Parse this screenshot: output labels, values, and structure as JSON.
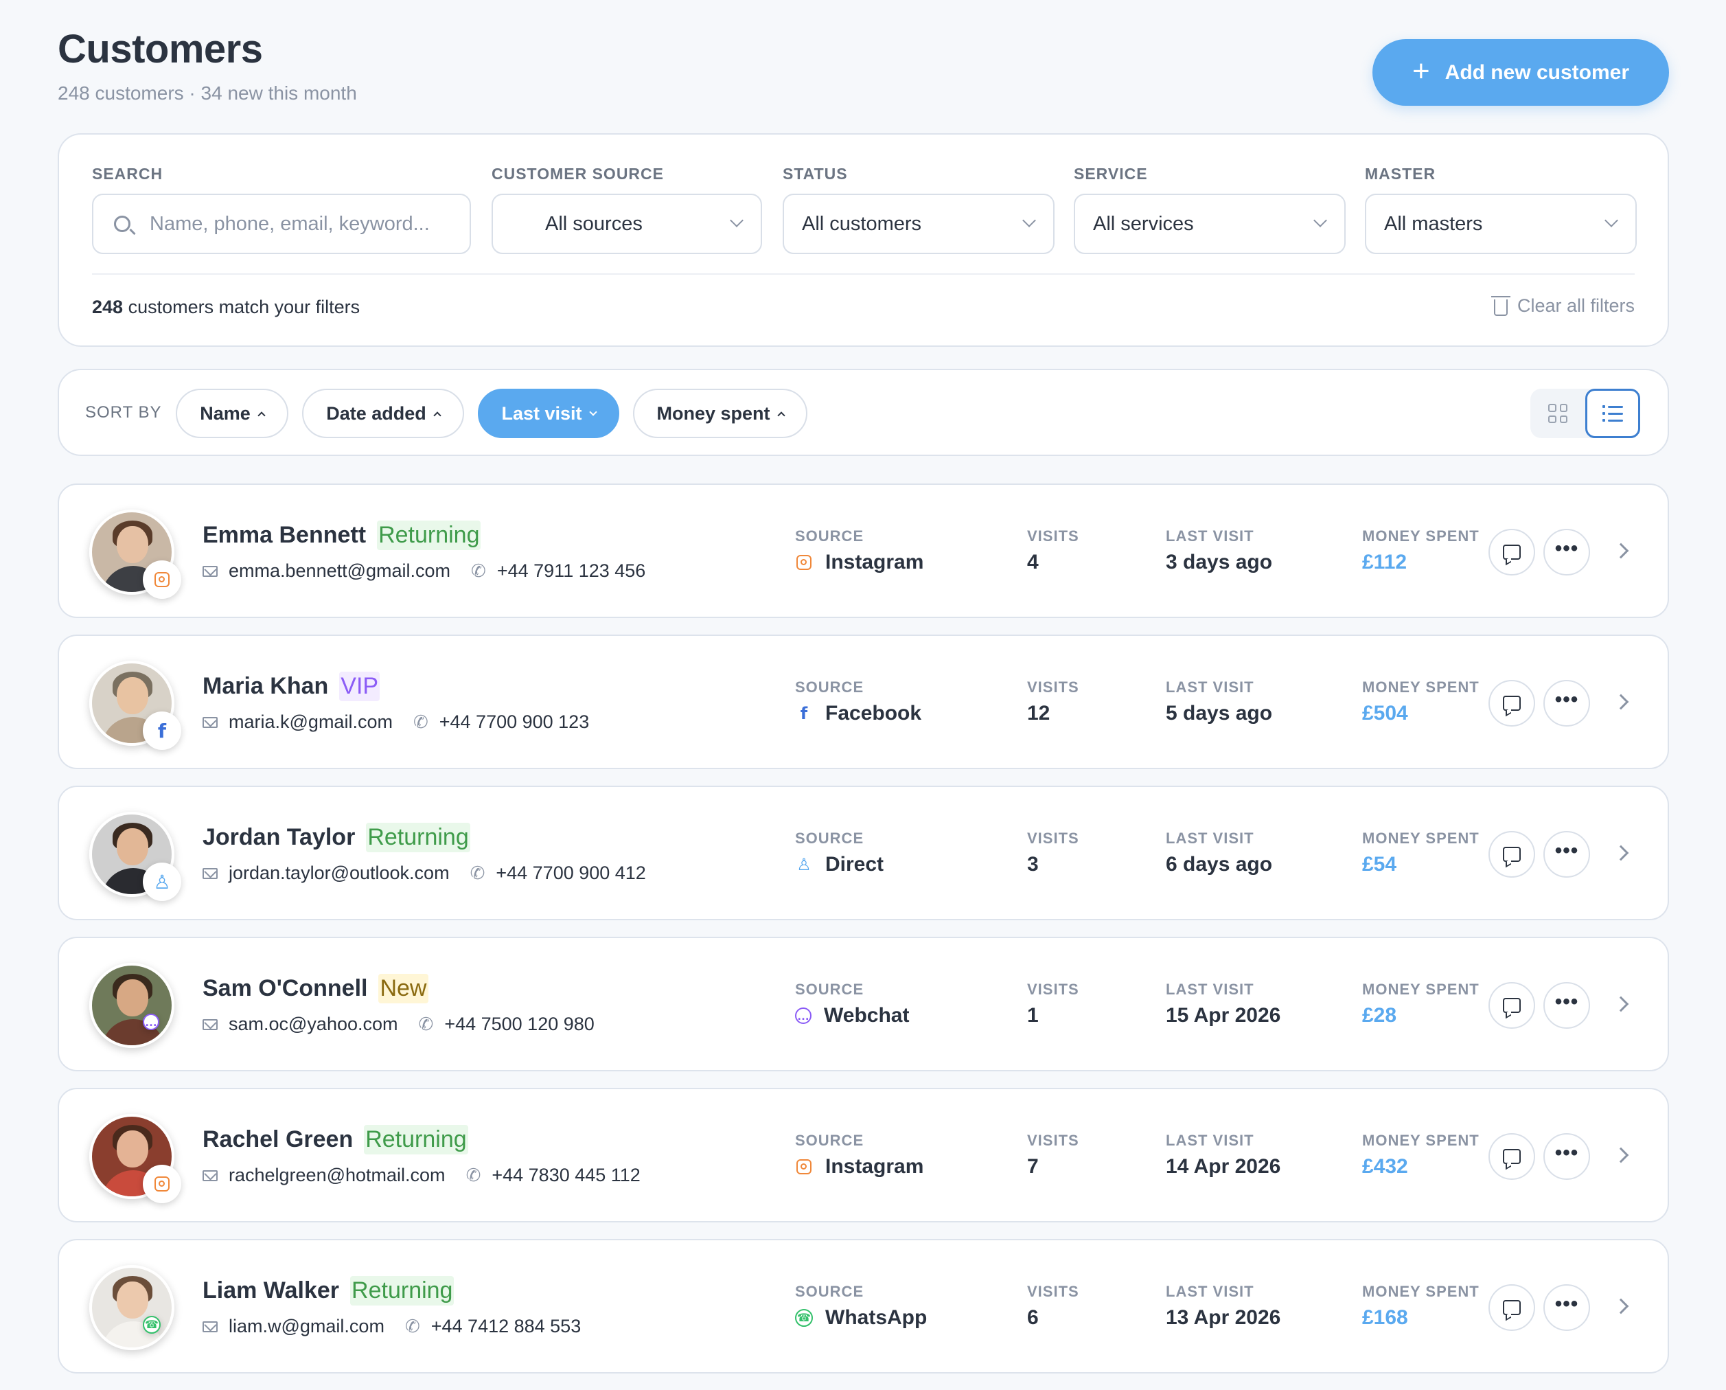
{
  "header": {
    "title": "Customers",
    "subtitle": "248 customers · 34 new this month",
    "add_button": "Add new customer"
  },
  "filters": {
    "search_label": "SEARCH",
    "search_placeholder": "Name, phone, email, keyword...",
    "source_label": "CUSTOMER SOURCE",
    "source_value": "All sources",
    "status_label": "STATUS",
    "status_value": "All customers",
    "service_label": "SERVICE",
    "service_value": "All services",
    "master_label": "MASTER",
    "master_value": "All masters",
    "match_count": "248",
    "match_text": "customers match your filters",
    "clear_label": "Clear all filters"
  },
  "sort": {
    "label": "SORT BY",
    "options": [
      "Name",
      "Date added",
      "Last visit",
      "Money spent"
    ],
    "active": "Last visit"
  },
  "columns": {
    "source": "SOURCE",
    "visits": "VISITS",
    "last_visit": "LAST VISIT",
    "money_spent": "MONEY SPENT"
  },
  "customers": [
    {
      "name": "Emma Bennett",
      "tag": "Returning",
      "email": "emma.bennett@gmail.com",
      "phone": "+44 7911 123 456",
      "source": "Instagram",
      "source_icon": "instagram-icon",
      "visits": "4",
      "last_visit": "3 days ago",
      "money": "£112"
    },
    {
      "name": "Maria Khan",
      "tag": "VIP",
      "email": "maria.k@gmail.com",
      "phone": "+44 7700 900 123",
      "source": "Facebook",
      "source_icon": "facebook-icon",
      "visits": "12",
      "last_visit": "5 days ago",
      "money": "£504"
    },
    {
      "name": "Jordan Taylor",
      "tag": "Returning",
      "email": "jordan.taylor@outlook.com",
      "phone": "+44 7700 900 412",
      "source": "Direct",
      "source_icon": "person-icon",
      "visits": "3",
      "last_visit": "6 days ago",
      "money": "£54"
    },
    {
      "name": "Sam O'Connell",
      "tag": "New",
      "email": "sam.oc@yahoo.com",
      "phone": "+44 7500 120 980",
      "source": "Webchat",
      "source_icon": "webchat-icon",
      "visits": "1",
      "last_visit": "15 Apr 2026",
      "money": "£28"
    },
    {
      "name": "Rachel Green",
      "tag": "Returning",
      "email": "rachelgreen@hotmail.com",
      "phone": "+44 7830 445 112",
      "source": "Instagram",
      "source_icon": "instagram-icon",
      "visits": "7",
      "last_visit": "14 Apr 2026",
      "money": "£432"
    },
    {
      "name": "Liam Walker",
      "tag": "Returning",
      "email": "liam.w@gmail.com",
      "phone": "+44 7412 884 553",
      "source": "WhatsApp",
      "source_icon": "whatsapp-icon",
      "visits": "6",
      "last_visit": "13 Apr 2026",
      "money": "£168"
    }
  ],
  "colors": {
    "accent": "#5aa9ef",
    "returning": "#3f9b4a",
    "vip": "#8b5cf6",
    "new": "#8a6a10",
    "instagram": "#f0883a",
    "facebook": "#3b6fd8",
    "whatsapp": "#34c06b",
    "webchat": "#8b5cf6"
  }
}
